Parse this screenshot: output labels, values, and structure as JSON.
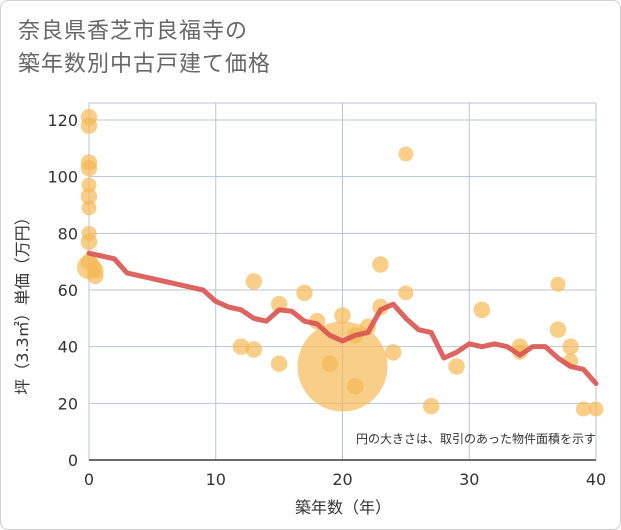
{
  "title_lines": [
    "奈良県香芝市良福寺の",
    "築年数別中古戸建て価格"
  ],
  "chart_data": {
    "type": "scatter",
    "title": "奈良県香芝市良福寺の築年数別中古戸建て価格",
    "xlabel": "築年数（年）",
    "ylabel": "坪（3.3㎡）単価（万円）",
    "xlim": [
      0,
      40
    ],
    "ylim": [
      0,
      126
    ],
    "xticks": [
      0,
      10,
      20,
      30,
      40
    ],
    "yticks": [
      0,
      20,
      40,
      60,
      80,
      100,
      120
    ],
    "grid": true,
    "note": "円の大きさは、取引のあった物件面積を示す",
    "point_color": "#f5b955",
    "line_color": "#d9534f",
    "points": [
      {
        "x": 0,
        "y": 121,
        "size": 1.1
      },
      {
        "x": 0,
        "y": 118,
        "size": 1.1
      },
      {
        "x": 0,
        "y": 105,
        "size": 1.1
      },
      {
        "x": 0,
        "y": 103,
        "size": 1.1
      },
      {
        "x": 0,
        "y": 97,
        "size": 1.0
      },
      {
        "x": 0,
        "y": 93,
        "size": 1.1
      },
      {
        "x": 0,
        "y": 89,
        "size": 1.0
      },
      {
        "x": 0,
        "y": 80,
        "size": 1.0
      },
      {
        "x": 0,
        "y": 77,
        "size": 1.1
      },
      {
        "x": 0,
        "y": 70,
        "size": 1.1
      },
      {
        "x": 0,
        "y": 68,
        "size": 1.6
      },
      {
        "x": 0.5,
        "y": 67,
        "size": 1.1
      },
      {
        "x": 0.5,
        "y": 65,
        "size": 1.1
      },
      {
        "x": 12,
        "y": 40,
        "size": 1.1
      },
      {
        "x": 13,
        "y": 63,
        "size": 1.1
      },
      {
        "x": 13,
        "y": 39,
        "size": 1.1
      },
      {
        "x": 15,
        "y": 55,
        "size": 1.1
      },
      {
        "x": 15,
        "y": 34,
        "size": 1.1
      },
      {
        "x": 17,
        "y": 59,
        "size": 1.1
      },
      {
        "x": 18,
        "y": 49,
        "size": 1.1
      },
      {
        "x": 19,
        "y": 34,
        "size": 1.1
      },
      {
        "x": 20,
        "y": 51,
        "size": 1.1
      },
      {
        "x": 20,
        "y": 33,
        "size": 6.0
      },
      {
        "x": 21,
        "y": 44,
        "size": 1.1
      },
      {
        "x": 21,
        "y": 26,
        "size": 1.1
      },
      {
        "x": 22,
        "y": 47,
        "size": 1.1
      },
      {
        "x": 23,
        "y": 69,
        "size": 1.1
      },
      {
        "x": 23,
        "y": 54,
        "size": 1.1
      },
      {
        "x": 24,
        "y": 38,
        "size": 1.1
      },
      {
        "x": 25,
        "y": 108,
        "size": 1.0
      },
      {
        "x": 25,
        "y": 59,
        "size": 1.0
      },
      {
        "x": 27,
        "y": 19,
        "size": 1.1
      },
      {
        "x": 29,
        "y": 33,
        "size": 1.1
      },
      {
        "x": 31,
        "y": 53,
        "size": 1.1
      },
      {
        "x": 34,
        "y": 40,
        "size": 1.1
      },
      {
        "x": 34,
        "y": 38,
        "size": 1.0
      },
      {
        "x": 37,
        "y": 62,
        "size": 1.0
      },
      {
        "x": 37,
        "y": 46,
        "size": 1.1
      },
      {
        "x": 38,
        "y": 40,
        "size": 1.1
      },
      {
        "x": 38,
        "y": 35,
        "size": 1.0
      },
      {
        "x": 39,
        "y": 18,
        "size": 1.0
      },
      {
        "x": 40,
        "y": 18,
        "size": 1.0
      }
    ],
    "trend": {
      "x": [
        0,
        1,
        2,
        3,
        4,
        5,
        6,
        7,
        8,
        9,
        10,
        11,
        12,
        13,
        14,
        15,
        16,
        17,
        18,
        19,
        20,
        21,
        22,
        23,
        24,
        25,
        26,
        27,
        28,
        29,
        30,
        31,
        32,
        33,
        34,
        35,
        36,
        37,
        38,
        39,
        40
      ],
      "y": [
        73,
        72,
        71,
        66,
        65,
        64,
        63,
        62,
        61,
        60,
        56,
        54,
        53,
        50,
        49,
        53,
        52.5,
        49,
        48,
        44,
        42,
        44,
        45,
        53,
        55,
        50,
        46,
        45,
        36,
        38,
        41,
        40,
        41,
        40,
        37,
        40,
        40,
        36,
        33,
        32,
        27
      ]
    }
  }
}
